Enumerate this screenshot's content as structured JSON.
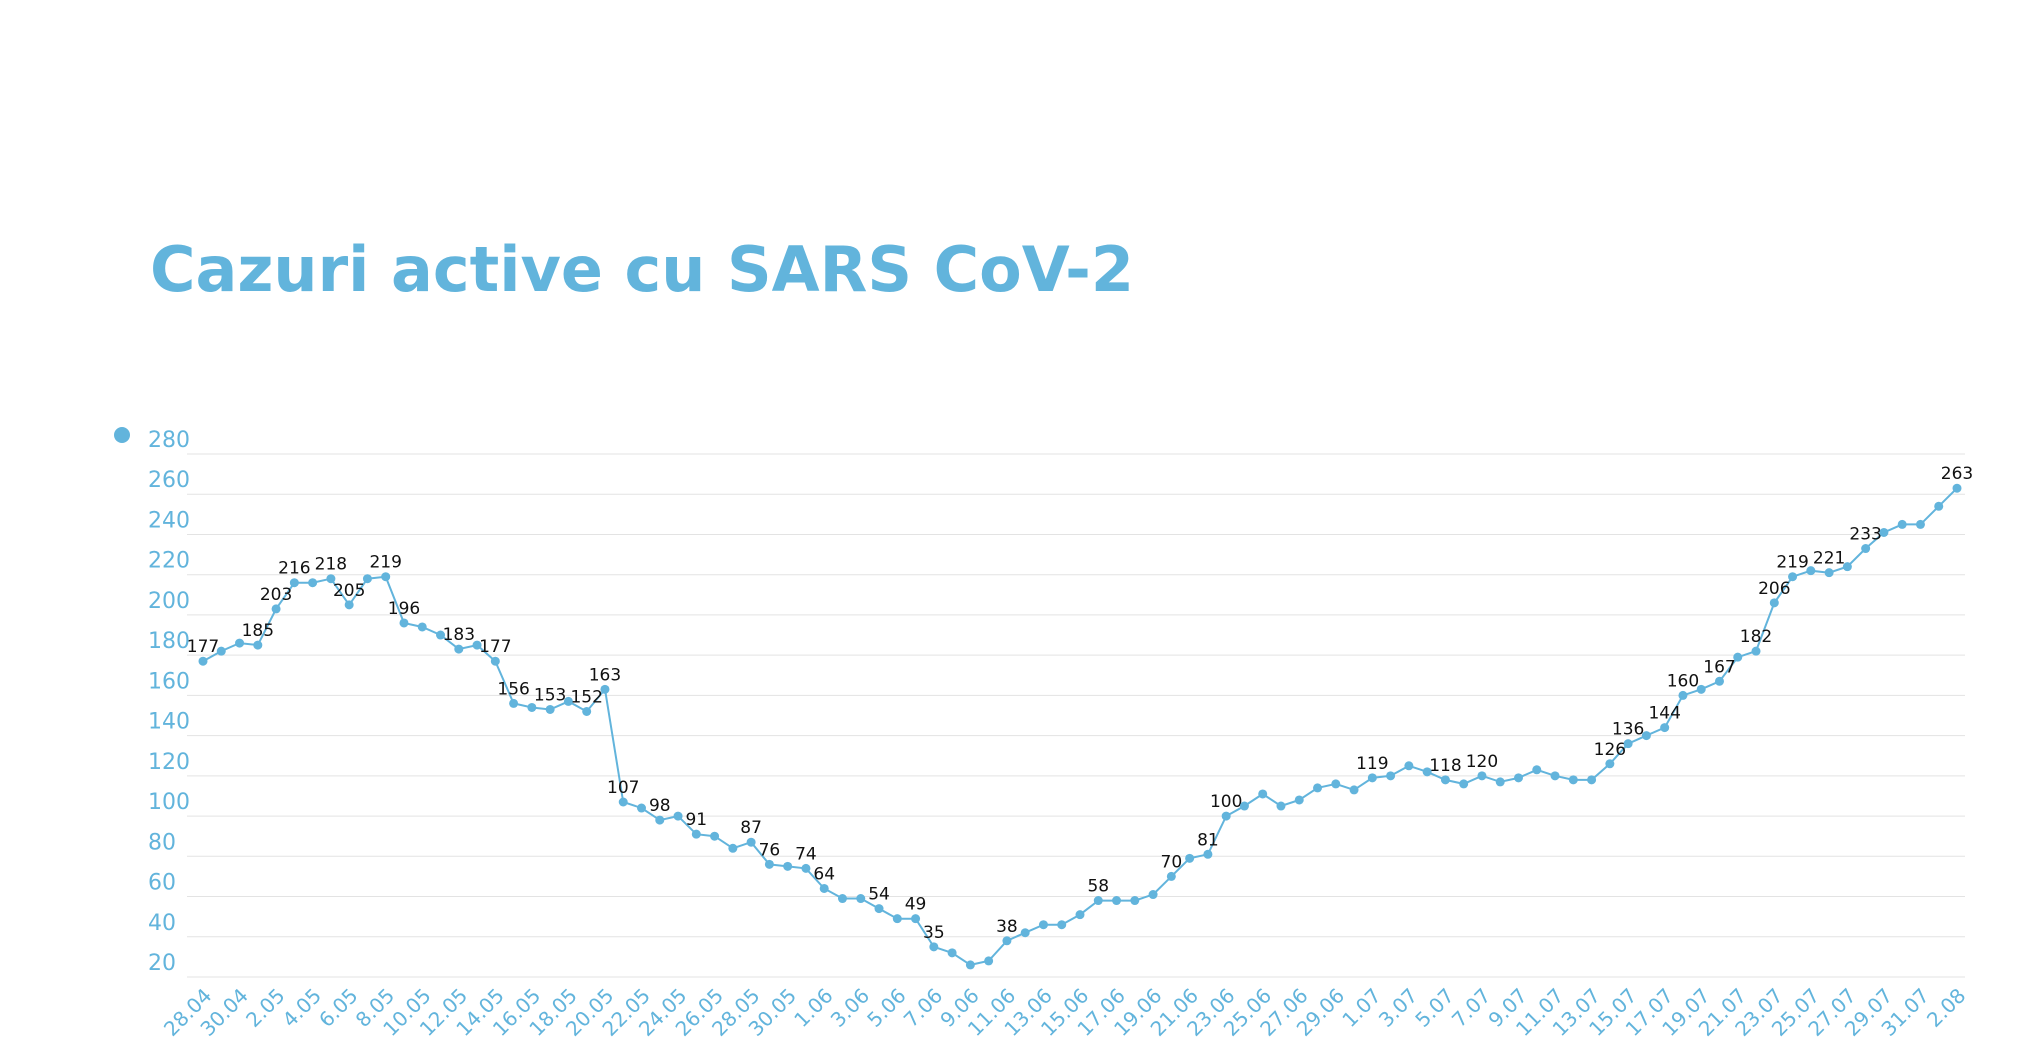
{
  "chart_data": {
    "type": "line",
    "title": "Cazuri active cu SARS CoV-2",
    "categories": [
      "28.04",
      null,
      "30.04",
      null,
      "2.05",
      null,
      "4.05",
      null,
      "6.05",
      null,
      "8.05",
      null,
      "10.05",
      null,
      "12.05",
      null,
      "14.05",
      null,
      "16.05",
      null,
      "18.05",
      null,
      "20.05",
      null,
      "22.05",
      null,
      "24.05",
      null,
      "26.05",
      null,
      "28.05",
      null,
      "30.05",
      null,
      "1.06",
      null,
      "3.06",
      null,
      "5.06",
      null,
      "7.06",
      null,
      "9.06",
      null,
      "11.06",
      null,
      "13.06",
      null,
      "15.06",
      null,
      "17.06",
      null,
      "19.06",
      null,
      "21.06",
      null,
      "23.06",
      null,
      "25.06",
      null,
      "27.06",
      null,
      "29.06",
      null,
      "1.07",
      null,
      "3.07",
      null,
      "5.07",
      null,
      "7.07",
      null,
      "9.07",
      null,
      "11.07",
      null,
      "13.07",
      null,
      "15.07",
      null,
      "17.07",
      null,
      "19.07",
      null,
      "21.07",
      null,
      "23.07",
      null,
      "25.07",
      null,
      "27.07",
      null,
      "29.07",
      null,
      "31.07",
      null,
      "2.08"
    ],
    "series": [
      {
        "color": "#62b4dc",
        "values": [
          177,
          182,
          186,
          185,
          203,
          216,
          216,
          218,
          205,
          218,
          219,
          196,
          194,
          190,
          183,
          185,
          177,
          156,
          154,
          153,
          157,
          152,
          163,
          107,
          104,
          98,
          100,
          91,
          90,
          84,
          87,
          76,
          75,
          74,
          64,
          59,
          59,
          54,
          49,
          49,
          35,
          32,
          26,
          28,
          38,
          42,
          46,
          46,
          51,
          58,
          58,
          58,
          61,
          70,
          79,
          81,
          100,
          105,
          111,
          105,
          108,
          114,
          116,
          113,
          119,
          120,
          125,
          122,
          118,
          116,
          120,
          117,
          119,
          123,
          120,
          118,
          118,
          126,
          136,
          140,
          144,
          160,
          163,
          167,
          179,
          182,
          206,
          219,
          222,
          221,
          224,
          233,
          241,
          245,
          245,
          254,
          263
        ],
        "value_labels": [
          "177",
          null,
          null,
          "185",
          "203",
          "216",
          null,
          "218",
          "205",
          null,
          "219",
          "196",
          null,
          null,
          "183",
          null,
          "177",
          "156",
          null,
          "153",
          null,
          "152",
          "163",
          "107",
          null,
          "98",
          null,
          "91",
          null,
          null,
          "87",
          "76",
          null,
          "74",
          "64",
          null,
          null,
          "54",
          null,
          "49",
          "35",
          null,
          null,
          null,
          "38",
          null,
          null,
          null,
          null,
          "58",
          null,
          null,
          null,
          "70",
          null,
          "81",
          "100",
          null,
          null,
          null,
          null,
          null,
          null,
          null,
          "119",
          null,
          null,
          null,
          "118",
          null,
          "120",
          null,
          null,
          null,
          null,
          null,
          null,
          "126",
          "136",
          null,
          "144",
          "160",
          null,
          "167",
          null,
          "182",
          "206",
          "219",
          null,
          "221",
          null,
          "233",
          null,
          null,
          null,
          null,
          "263"
        ]
      }
    ],
    "ylim": [
      20,
      280
    ],
    "yticks": [
      20,
      40,
      60,
      80,
      100,
      120,
      140,
      160,
      180,
      200,
      220,
      240,
      260,
      280
    ],
    "grid": true
  }
}
